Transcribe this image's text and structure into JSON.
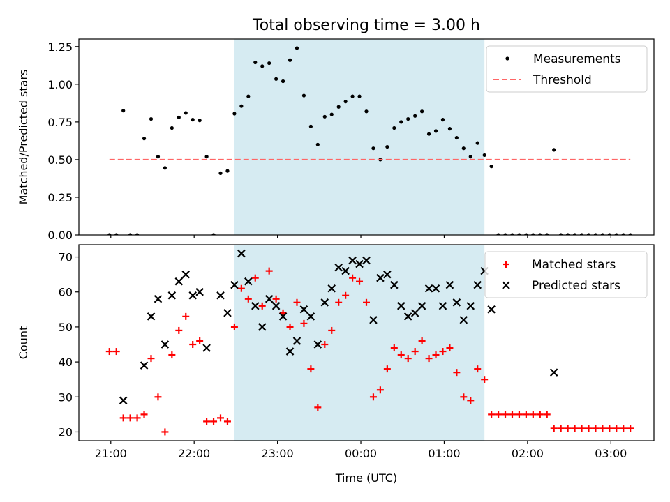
{
  "figure": {
    "title": "Total observing time = 3.00 h"
  },
  "chart_data": [
    {
      "type": "scatter",
      "ylabel": "Matched/Predicted stars",
      "xlabel": "",
      "xlim": [
        20.6167,
        27.5167
      ],
      "ylim": [
        0.0,
        1.3
      ],
      "x_ticks": [
        21,
        22,
        23,
        24,
        25,
        26,
        27
      ],
      "x_tick_labels": [
        "",
        "",
        "",
        "",
        "",
        "",
        ""
      ],
      "y_ticks": [
        0.0,
        0.25,
        0.5,
        0.75,
        1.0,
        1.25
      ],
      "y_tick_labels": [
        "0.00",
        "0.25",
        "0.50",
        "0.75",
        "1.00",
        "1.25"
      ],
      "shaded_region": {
        "x_start": 22.4833,
        "x_end": 25.4833,
        "color": "#add8e6"
      },
      "legend": {
        "position": "top-right",
        "entries": [
          {
            "label": "Measurements",
            "marker": "dot",
            "color": "#000000"
          },
          {
            "label": "Threshold",
            "marker": "dashed-line",
            "color": "#ff6666"
          }
        ]
      },
      "series": [
        {
          "name": "Measurements",
          "marker": "dot",
          "color": "#000000",
          "points": [
            [
              20.9833,
              0.0
            ],
            [
              21.0667,
              0.0
            ],
            [
              21.15,
              0.825
            ],
            [
              21.2333,
              0.0
            ],
            [
              21.3167,
              0.0
            ],
            [
              21.4,
              0.64
            ],
            [
              21.4833,
              0.77
            ],
            [
              21.5667,
              0.52
            ],
            [
              21.65,
              0.445
            ],
            [
              21.7333,
              0.71
            ],
            [
              21.8167,
              0.78
            ],
            [
              21.9,
              0.81
            ],
            [
              21.9833,
              0.765
            ],
            [
              22.0667,
              0.76
            ],
            [
              22.15,
              0.52
            ],
            [
              22.2333,
              0.0
            ],
            [
              22.3167,
              0.41
            ],
            [
              22.4,
              0.425
            ],
            [
              22.4833,
              0.805
            ],
            [
              22.5667,
              0.855
            ],
            [
              22.65,
              0.92
            ],
            [
              22.7333,
              1.145
            ],
            [
              22.8167,
              1.12
            ],
            [
              22.9,
              1.14
            ],
            [
              22.9833,
              1.035
            ],
            [
              23.0667,
              1.02
            ],
            [
              23.15,
              1.16
            ],
            [
              23.2333,
              1.24
            ],
            [
              23.3167,
              0.925
            ],
            [
              23.4,
              0.72
            ],
            [
              23.4833,
              0.6
            ],
            [
              23.5667,
              0.785
            ],
            [
              23.65,
              0.8
            ],
            [
              23.7333,
              0.85
            ],
            [
              23.8167,
              0.885
            ],
            [
              23.9,
              0.92
            ],
            [
              23.9833,
              0.92
            ],
            [
              24.0667,
              0.82
            ],
            [
              24.15,
              0.575
            ],
            [
              24.2333,
              0.5
            ],
            [
              24.3167,
              0.585
            ],
            [
              24.4,
              0.71
            ],
            [
              24.4833,
              0.75
            ],
            [
              24.5667,
              0.77
            ],
            [
              24.65,
              0.79
            ],
            [
              24.7333,
              0.82
            ],
            [
              24.8167,
              0.67
            ],
            [
              24.9,
              0.69
            ],
            [
              24.9833,
              0.765
            ],
            [
              25.0667,
              0.705
            ],
            [
              25.15,
              0.645
            ],
            [
              25.2333,
              0.575
            ],
            [
              25.3167,
              0.52
            ],
            [
              25.4,
              0.61
            ],
            [
              25.4833,
              0.53
            ],
            [
              25.5667,
              0.455
            ],
            [
              25.65,
              0.0
            ],
            [
              25.7333,
              0.0
            ],
            [
              25.8167,
              0.0
            ],
            [
              25.9,
              0.0
            ],
            [
              25.9833,
              0.0
            ],
            [
              26.0667,
              0.0
            ],
            [
              26.15,
              0.0
            ],
            [
              26.2333,
              0.0
            ],
            [
              26.3167,
              0.565
            ],
            [
              26.4,
              0.0
            ],
            [
              26.4833,
              0.0
            ],
            [
              26.5667,
              0.0
            ],
            [
              26.65,
              0.0
            ],
            [
              26.7333,
              0.0
            ],
            [
              26.8167,
              0.0
            ],
            [
              26.9,
              0.0
            ],
            [
              26.9833,
              0.0
            ],
            [
              27.0667,
              0.0
            ],
            [
              27.15,
              0.0
            ],
            [
              27.2333,
              0.0
            ]
          ]
        },
        {
          "name": "Threshold",
          "line_style": "dashed",
          "color": "#ff6666",
          "points": [
            [
              20.9833,
              0.5
            ],
            [
              27.2333,
              0.5
            ]
          ]
        }
      ]
    },
    {
      "type": "scatter",
      "ylabel": "Count",
      "xlabel": "Time (UTC)",
      "xlim": [
        20.6167,
        27.5167
      ],
      "ylim": [
        17.5,
        73.5
      ],
      "x_ticks": [
        21,
        22,
        23,
        24,
        25,
        26,
        27
      ],
      "x_tick_labels": [
        "21:00",
        "22:00",
        "23:00",
        "00:00",
        "01:00",
        "02:00",
        "03:00"
      ],
      "y_ticks": [
        20,
        30,
        40,
        50,
        60,
        70
      ],
      "y_tick_labels": [
        "20",
        "30",
        "40",
        "50",
        "60",
        "70"
      ],
      "shaded_region": {
        "x_start": 22.4833,
        "x_end": 25.4833,
        "color": "#add8e6"
      },
      "legend": {
        "position": "top-right",
        "entries": [
          {
            "label": "Matched stars",
            "marker": "plus",
            "color": "#ff0000"
          },
          {
            "label": "Predicted stars",
            "marker": "x",
            "color": "#000000"
          }
        ]
      },
      "series": [
        {
          "name": "Matched stars",
          "marker": "plus",
          "color": "#ff0000",
          "points": [
            [
              20.9833,
              43
            ],
            [
              21.0667,
              43
            ],
            [
              21.15,
              24
            ],
            [
              21.2333,
              24
            ],
            [
              21.3167,
              24
            ],
            [
              21.4,
              25
            ],
            [
              21.4833,
              41
            ],
            [
              21.5667,
              30
            ],
            [
              21.65,
              20
            ],
            [
              21.7333,
              42
            ],
            [
              21.8167,
              49
            ],
            [
              21.9,
              53
            ],
            [
              21.9833,
              45
            ],
            [
              22.0667,
              46
            ],
            [
              22.15,
              23
            ],
            [
              22.2333,
              23
            ],
            [
              22.3167,
              24
            ],
            [
              22.4,
              23
            ],
            [
              22.4833,
              50
            ],
            [
              22.5667,
              61
            ],
            [
              22.65,
              58
            ],
            [
              22.7333,
              64
            ],
            [
              22.8167,
              56
            ],
            [
              22.9,
              66
            ],
            [
              22.9833,
              58
            ],
            [
              23.0667,
              54
            ],
            [
              23.15,
              50
            ],
            [
              23.2333,
              57
            ],
            [
              23.3167,
              51
            ],
            [
              23.4,
              38
            ],
            [
              23.4833,
              27
            ],
            [
              23.5667,
              45
            ],
            [
              23.65,
              49
            ],
            [
              23.7333,
              57
            ],
            [
              23.8167,
              59
            ],
            [
              23.9,
              64
            ],
            [
              23.9833,
              63
            ],
            [
              24.0667,
              57
            ],
            [
              24.15,
              30
            ],
            [
              24.2333,
              32
            ],
            [
              24.3167,
              38
            ],
            [
              24.4,
              44
            ],
            [
              24.4833,
              42
            ],
            [
              24.5667,
              41
            ],
            [
              24.65,
              43
            ],
            [
              24.7333,
              46
            ],
            [
              24.8167,
              41
            ],
            [
              24.9,
              42
            ],
            [
              24.9833,
              43
            ],
            [
              25.0667,
              44
            ],
            [
              25.15,
              37
            ],
            [
              25.2333,
              30
            ],
            [
              25.3167,
              29
            ],
            [
              25.4,
              38
            ],
            [
              25.4833,
              35
            ],
            [
              25.5667,
              25
            ],
            [
              25.65,
              25
            ],
            [
              25.7333,
              25
            ],
            [
              25.8167,
              25
            ],
            [
              25.9,
              25
            ],
            [
              25.9833,
              25
            ],
            [
              26.0667,
              25
            ],
            [
              26.15,
              25
            ],
            [
              26.2333,
              25
            ],
            [
              26.3167,
              21
            ],
            [
              26.4,
              21
            ],
            [
              26.4833,
              21
            ],
            [
              26.5667,
              21
            ],
            [
              26.65,
              21
            ],
            [
              26.7333,
              21
            ],
            [
              26.8167,
              21
            ],
            [
              26.9,
              21
            ],
            [
              26.9833,
              21
            ],
            [
              27.0667,
              21
            ],
            [
              27.15,
              21
            ],
            [
              27.2333,
              21
            ]
          ]
        },
        {
          "name": "Predicted stars",
          "marker": "x",
          "color": "#000000",
          "points": [
            [
              21.15,
              29
            ],
            [
              21.4,
              39
            ],
            [
              21.4833,
              53
            ],
            [
              21.5667,
              58
            ],
            [
              21.65,
              45
            ],
            [
              21.7333,
              59
            ],
            [
              21.8167,
              63
            ],
            [
              21.9,
              65
            ],
            [
              21.9833,
              59
            ],
            [
              22.0667,
              60
            ],
            [
              22.15,
              44
            ],
            [
              22.3167,
              59
            ],
            [
              22.4,
              54
            ],
            [
              22.4833,
              62
            ],
            [
              22.5667,
              71
            ],
            [
              22.65,
              63
            ],
            [
              22.7333,
              56
            ],
            [
              22.8167,
              50
            ],
            [
              22.9,
              58
            ],
            [
              22.9833,
              56
            ],
            [
              23.0667,
              53
            ],
            [
              23.15,
              43
            ],
            [
              23.2333,
              46
            ],
            [
              23.3167,
              55
            ],
            [
              23.4,
              53
            ],
            [
              23.4833,
              45
            ],
            [
              23.5667,
              57
            ],
            [
              23.65,
              61
            ],
            [
              23.7333,
              67
            ],
            [
              23.8167,
              66
            ],
            [
              23.9,
              69
            ],
            [
              23.9833,
              68
            ],
            [
              24.0667,
              69
            ],
            [
              24.15,
              52
            ],
            [
              24.2333,
              64
            ],
            [
              24.3167,
              65
            ],
            [
              24.4,
              62
            ],
            [
              24.4833,
              56
            ],
            [
              24.5667,
              53
            ],
            [
              24.65,
              54
            ],
            [
              24.7333,
              56
            ],
            [
              24.8167,
              61
            ],
            [
              24.9,
              61
            ],
            [
              24.9833,
              56
            ],
            [
              25.0667,
              62
            ],
            [
              25.15,
              57
            ],
            [
              25.2333,
              52
            ],
            [
              25.3167,
              56
            ],
            [
              25.4,
              62
            ],
            [
              25.4833,
              66
            ],
            [
              25.5667,
              55
            ],
            [
              26.3167,
              37
            ]
          ]
        }
      ]
    }
  ]
}
